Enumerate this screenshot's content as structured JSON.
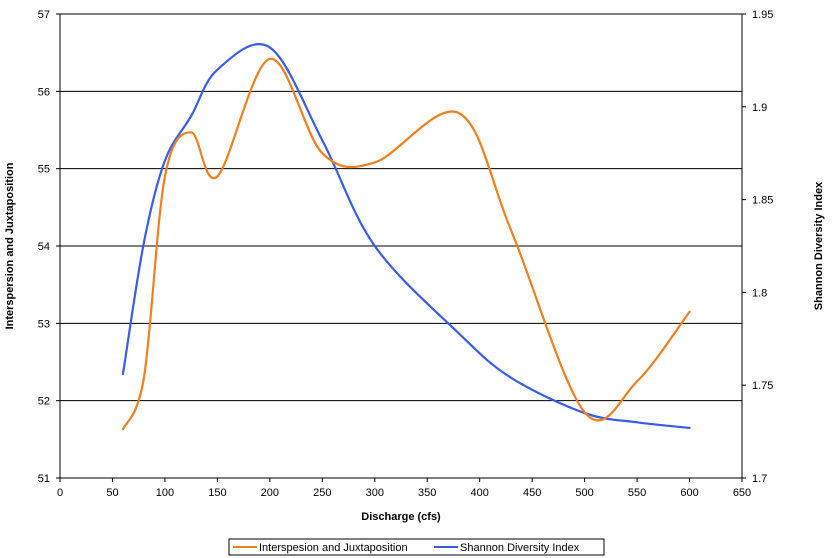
{
  "chart_data": {
    "type": "line",
    "title": "",
    "xlabel": "Discharge (cfs)",
    "ylabel": "Interspersion and Juxtaposition",
    "y2label": "Shannon Diversity Index",
    "xlim": [
      0,
      650
    ],
    "ylim": [
      51,
      57
    ],
    "y2lim": [
      1.7,
      1.95
    ],
    "x_ticks": [
      0,
      50,
      100,
      150,
      200,
      250,
      300,
      350,
      400,
      450,
      500,
      550,
      600,
      650
    ],
    "y_ticks": [
      51,
      52,
      53,
      54,
      55,
      56,
      57
    ],
    "y2_ticks": [
      "1.7",
      "1.75",
      "1.8",
      "1.85",
      "1.9",
      "1.95"
    ],
    "grid": "horizontal",
    "legend": "bottom",
    "series": [
      {
        "name": "Interspesion and Juxtaposition",
        "axis": "left",
        "color": "#f07f1e",
        "x": [
          60,
          80,
          100,
          125,
          150,
          200,
          250,
          300,
          380,
          430,
          500,
          550,
          600
        ],
        "y": [
          51.63,
          52.3,
          54.9,
          55.47,
          54.9,
          56.42,
          55.2,
          55.08,
          55.72,
          54.2,
          51.85,
          52.25,
          53.15
        ]
      },
      {
        "name": "Shannon Diversity Index",
        "axis": "right",
        "color": "#3a5de6",
        "x": [
          60,
          80,
          100,
          125,
          150,
          200,
          250,
          300,
          380,
          430,
          500,
          550,
          600
        ],
        "y": [
          1.756,
          1.827,
          1.871,
          1.895,
          1.92,
          1.932,
          1.882,
          1.825,
          1.778,
          1.754,
          1.735,
          1.73,
          1.727
        ]
      }
    ]
  }
}
